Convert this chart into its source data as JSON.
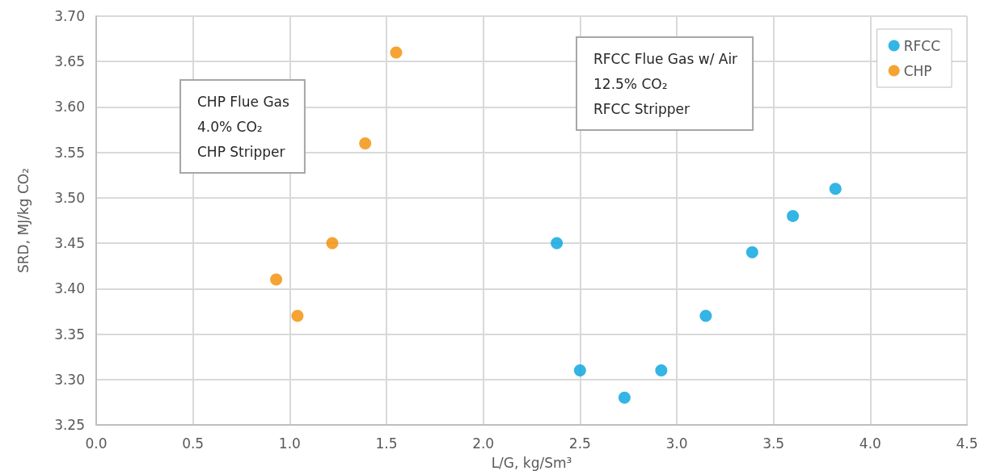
{
  "chart_data": {
    "type": "scatter",
    "xlabel": "L/G, kg/Sm³",
    "ylabel": "SRD, MJ/kg CO₂",
    "annotations": [
      "CHP Flue Gas\n4.0% CO₂\nCHP Stripper",
      "RFCC Flue Gas w/ Air\n12.5% CO₂\nRFCC Stripper"
    ],
    "series": [
      {
        "name": "RFCC",
        "color": "#00a2de",
        "x": [
          2.38,
          2.5,
          2.73,
          2.92,
          3.15,
          3.39,
          3.6,
          3.82
        ],
        "values": [
          3.45,
          3.31,
          3.28,
          3.31,
          3.37,
          3.44,
          3.48,
          3.51
        ]
      },
      {
        "name": "CHP",
        "color": "#f28c00",
        "x": [
          0.93,
          1.04,
          1.22,
          1.39,
          1.55
        ],
        "values": [
          3.41,
          3.37,
          3.45,
          3.56,
          3.66
        ]
      }
    ],
    "xlim": [
      0,
      4.5
    ],
    "xticks": [
      {
        "value": 0,
        "label": "0.0"
      },
      0.5,
      {
        "value": 1,
        "label": "1.0"
      },
      1.5,
      {
        "value": 2,
        "label": "2.0"
      },
      2.5,
      {
        "value": 3,
        "label": "3.0"
      },
      3.5,
      {
        "value": 4,
        "label": "4.0"
      },
      4.5
    ],
    "ylim": [
      3.25,
      3.7
    ],
    "yticks": [
      3.25,
      {
        "value": 3.3,
        "label": "3.30"
      },
      3.35,
      {
        "value": 3.4,
        "label": "3.40"
      },
      3.45,
      {
        "value": 3.5,
        "label": "3.50"
      },
      3.55,
      {
        "value": 3.6,
        "label": "3.60"
      },
      3.65,
      {
        "value": 3.7,
        "label": "3.70"
      }
    ],
    "grid": true,
    "legend": "top right",
    "marker": "circle"
  }
}
